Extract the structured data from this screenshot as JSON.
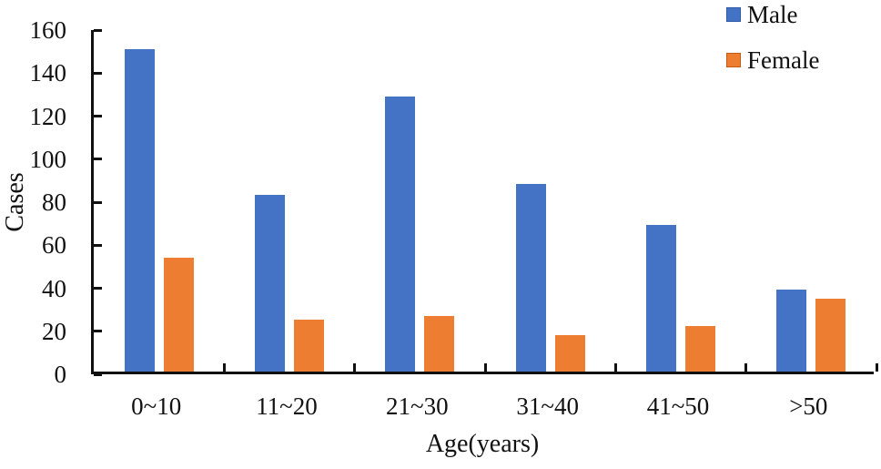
{
  "chart_data": {
    "type": "bar",
    "title": "",
    "xlabel": "Age(years)",
    "ylabel": "Cases",
    "categories": [
      "0~10",
      "11~20",
      "21~30",
      "31~40",
      "41~50",
      ">50"
    ],
    "series": [
      {
        "name": "Male",
        "color": "#4472C4",
        "border_color": "#2E5AA8",
        "values": [
          150,
          82,
          128,
          87,
          68,
          38
        ]
      },
      {
        "name": "Female",
        "color": "#ED7D31",
        "border_color": "#C55A11",
        "values": [
          53,
          24,
          26,
          17,
          21,
          34
        ]
      }
    ],
    "ylim": [
      0,
      160
    ],
    "ytick_step": 20,
    "yticks": [
      0,
      20,
      40,
      60,
      80,
      100,
      120,
      140,
      160
    ],
    "grid": false,
    "legend_position": "top-right",
    "axis_color": "#111111",
    "text_color": "#111111",
    "background_color": "#FFFFFF"
  }
}
